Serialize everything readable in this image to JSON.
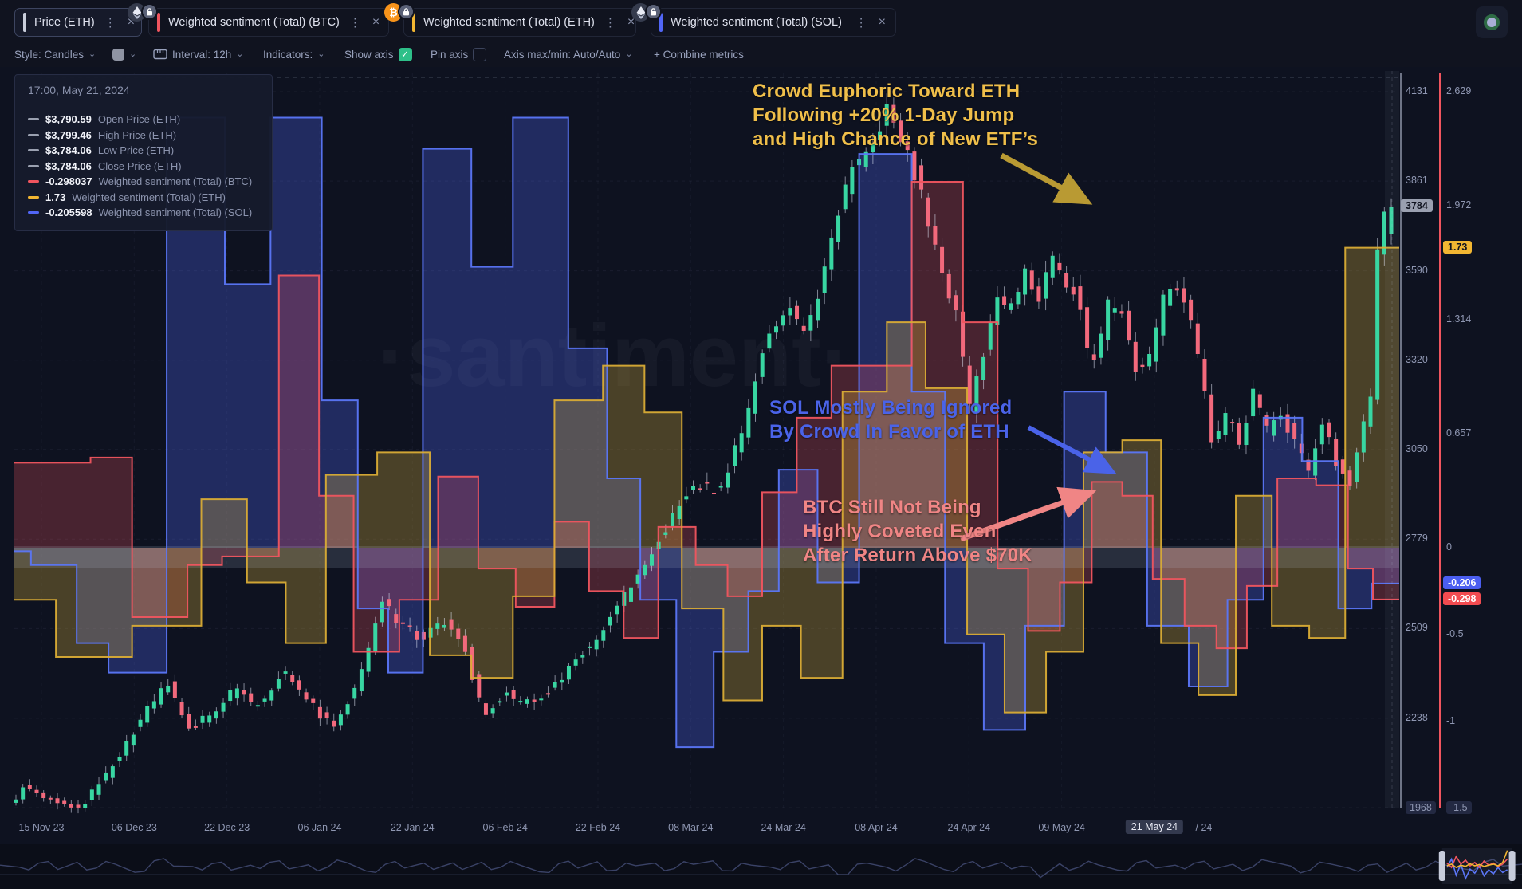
{
  "app": {
    "watermark": "·santiment·"
  },
  "tabs": {
    "items": [
      {
        "label": "Price (ETH)",
        "accent": "#c9cedb",
        "active": true
      },
      {
        "label": "Weighted sentiment (Total) (BTC)",
        "accent": "#f0555f",
        "active": false
      },
      {
        "label": "Weighted sentiment (Total) (ETH)",
        "accent": "#f2b632",
        "active": false
      },
      {
        "label": "Weighted sentiment (Total) (SOL)",
        "accent": "#5166f6",
        "active": false
      }
    ],
    "kebab_glyph": "⋮",
    "close_glyph": "×"
  },
  "toolbar": {
    "style_label": "Style: Candles",
    "interval_label": "Interval: 12h",
    "indicators_label": "Indicators:",
    "show_axis_label": "Show axis",
    "pin_axis_label": "Pin axis",
    "axis_maxmin_label": "Axis max/min: Auto/Auto",
    "combine_label": "+ Combine metrics",
    "show_axis_checked": true,
    "pin_axis_checked": false,
    "check_glyph": "✓",
    "checkbox_color": "#2ec089"
  },
  "tooltip": {
    "timestamp": "17:00, May 21, 2024",
    "rows": [
      {
        "value": "$3,790.59",
        "label": "Open Price (ETH)",
        "color": "#9aa0b0"
      },
      {
        "value": "$3,799.46",
        "label": "High Price (ETH)",
        "color": "#9aa0b0"
      },
      {
        "value": "$3,784.06",
        "label": "Low Price (ETH)",
        "color": "#9aa0b0"
      },
      {
        "value": "$3,784.06",
        "label": "Close Price (ETH)",
        "color": "#9aa0b0"
      },
      {
        "value": "-0.298037",
        "label": "Weighted sentiment (Total) (BTC)",
        "color": "#f0555f"
      },
      {
        "value": "1.73",
        "label": "Weighted sentiment (Total) (ETH)",
        "color": "#f2b632"
      },
      {
        "value": "-0.205598",
        "label": "Weighted sentiment (Total) (SOL)",
        "color": "#5166f6"
      }
    ]
  },
  "annotations": {
    "eth": {
      "color": "#f0bf4a",
      "arrow_color": "#b99a33",
      "lines": [
        "Crowd Euphoric Toward ETH",
        "Following +20% 1-Day Jump",
        "and High Chance of New ETF’s"
      ]
    },
    "sol": {
      "color": "#4a63e8",
      "arrow_color": "#4a63e8",
      "lines": [
        "SOL Mostly Being Ignored",
        "By Crowd In Favor of ETH"
      ]
    },
    "btc": {
      "color": "#f08585",
      "arrow_color": "#f08585",
      "lines": [
        "BTC Still Not Being",
        "Highly Coveted Even",
        "After Return Above $70K"
      ]
    }
  },
  "axes": {
    "price_ticks": [
      4131,
      3861,
      3590,
      3320,
      3050,
      2779,
      2509,
      2238,
      1968
    ],
    "sentiment_ticks": [
      "2.629",
      "1.972",
      "1.314",
      "0.657",
      "0",
      "-0.5",
      "-1",
      "-1.5"
    ],
    "price_badge": {
      "text": "3784",
      "bg": "#9aa0b0",
      "fg": "#10131f"
    },
    "sentiment_badges": [
      {
        "text": "1.73",
        "bg": "#f2b632",
        "fg": "#10131f",
        "value": 1.73
      },
      {
        "text": "-0.206",
        "bg": "#4b5ef0",
        "fg": "#ffffff",
        "value": -0.206
      },
      {
        "text": "-0.298",
        "bg": "#f24b50",
        "fg": "#ffffff",
        "value": -0.298
      }
    ],
    "date_ticks": [
      "15 Nov 23",
      "06 Dec 23",
      "22 Dec 23",
      "06 Jan 24",
      "22 Jan 24",
      "06 Feb 24",
      "22 Feb 24",
      "08 Mar 24",
      "24 Mar 24",
      "08 Apr 24",
      "24 Apr 24",
      "09 May 24"
    ],
    "date_badge": "21 May 24",
    "date_suffix": "/ 24"
  },
  "chart_data": {
    "type": "candlestick",
    "interval": "12h",
    "x_range": [
      "15 Nov 23",
      "21 May 24"
    ],
    "price_axis_range": [
      1968,
      4131
    ],
    "sentiment_axis_range": [
      -1.5,
      2.629
    ],
    "grid": "dashed",
    "candle_colors": {
      "up": "#38d6a2",
      "down": "#f2697c",
      "wick": "rgba(225,232,248,0.55)"
    },
    "last_candle": {
      "open": 3790.59,
      "high": 3799.46,
      "low": 3784.06,
      "close": 3784.06
    },
    "price_path": [
      [
        0,
        1975
      ],
      [
        0.01,
        2030
      ],
      [
        0.03,
        1985
      ],
      [
        0.05,
        1960
      ],
      [
        0.07,
        2065
      ],
      [
        0.095,
        2230
      ],
      [
        0.115,
        2345
      ],
      [
        0.13,
        2210
      ],
      [
        0.15,
        2260
      ],
      [
        0.165,
        2330
      ],
      [
        0.18,
        2270
      ],
      [
        0.2,
        2385
      ],
      [
        0.215,
        2300
      ],
      [
        0.235,
        2210
      ],
      [
        0.255,
        2360
      ],
      [
        0.27,
        2590
      ],
      [
        0.285,
        2525
      ],
      [
        0.3,
        2475
      ],
      [
        0.315,
        2535
      ],
      [
        0.33,
        2465
      ],
      [
        0.345,
        2245
      ],
      [
        0.36,
        2315
      ],
      [
        0.375,
        2285
      ],
      [
        0.395,
        2325
      ],
      [
        0.415,
        2425
      ],
      [
        0.435,
        2525
      ],
      [
        0.455,
        2655
      ],
      [
        0.475,
        2795
      ],
      [
        0.495,
        2945
      ],
      [
        0.515,
        2925
      ],
      [
        0.535,
        3115
      ],
      [
        0.55,
        3395
      ],
      [
        0.565,
        3485
      ],
      [
        0.58,
        3395
      ],
      [
        0.595,
        3635
      ],
      [
        0.61,
        3875
      ],
      [
        0.625,
        3965
      ],
      [
        0.638,
        4075
      ],
      [
        0.648,
        3985
      ],
      [
        0.658,
        3890
      ],
      [
        0.668,
        3745
      ],
      [
        0.678,
        3565
      ],
      [
        0.688,
        3490
      ],
      [
        0.698,
        3170
      ],
      [
        0.708,
        3330
      ],
      [
        0.718,
        3515
      ],
      [
        0.728,
        3465
      ],
      [
        0.738,
        3595
      ],
      [
        0.748,
        3505
      ],
      [
        0.758,
        3625
      ],
      [
        0.768,
        3565
      ],
      [
        0.778,
        3515
      ],
      [
        0.786,
        3285
      ],
      [
        0.793,
        3365
      ],
      [
        0.8,
        3505
      ],
      [
        0.81,
        3455
      ],
      [
        0.82,
        3285
      ],
      [
        0.83,
        3335
      ],
      [
        0.84,
        3515
      ],
      [
        0.85,
        3545
      ],
      [
        0.86,
        3425
      ],
      [
        0.868,
        3255
      ],
      [
        0.875,
        3055
      ],
      [
        0.885,
        3155
      ],
      [
        0.895,
        3065
      ],
      [
        0.905,
        3225
      ],
      [
        0.915,
        3105
      ],
      [
        0.925,
        3165
      ],
      [
        0.935,
        3065
      ],
      [
        0.945,
        2975
      ],
      [
        0.955,
        3135
      ],
      [
        0.965,
        3015
      ],
      [
        0.975,
        2935
      ],
      [
        0.983,
        3085
      ],
      [
        0.99,
        3205
      ],
      [
        0.995,
        3655
      ],
      [
        1,
        3784
      ]
    ],
    "series": [
      {
        "name": "Weighted sentiment (Total) (BTC)",
        "type": "step",
        "color": "#f0555f",
        "fill": "rgba(240,85,95,0.26)",
        "points": [
          [
            0,
            0.49
          ],
          [
            0.055,
            0.52
          ],
          [
            0.085,
            -0.4
          ],
          [
            0.125,
            -0.1
          ],
          [
            0.15,
            -0.05
          ],
          [
            0.191,
            1.57
          ],
          [
            0.22,
            0.3
          ],
          [
            0.245,
            -0.6
          ],
          [
            0.278,
            -0.3
          ],
          [
            0.306,
            0.41
          ],
          [
            0.335,
            -0.12
          ],
          [
            0.362,
            -0.34
          ],
          [
            0.39,
            0.15
          ],
          [
            0.415,
            -0.25
          ],
          [
            0.44,
            -0.52
          ],
          [
            0.465,
            0.12
          ],
          [
            0.492,
            -0.1
          ],
          [
            0.515,
            -0.28
          ],
          [
            0.54,
            0.32
          ],
          [
            0.565,
            0.75
          ],
          [
            0.59,
            1.05
          ],
          [
            0.648,
            2.11
          ],
          [
            0.685,
            1.3
          ],
          [
            0.71,
            -0.12
          ],
          [
            0.732,
            -0.48
          ],
          [
            0.755,
            -0.2
          ],
          [
            0.778,
            0.38
          ],
          [
            0.8,
            0.3
          ],
          [
            0.822,
            -0.18
          ],
          [
            0.845,
            -0.45
          ],
          [
            0.868,
            -0.58
          ],
          [
            0.89,
            -0.22
          ],
          [
            0.912,
            0.4
          ],
          [
            0.94,
            0.36
          ],
          [
            0.963,
            -0.12
          ],
          [
            0.981,
            -0.298
          ]
        ]
      },
      {
        "name": "Weighted sentiment (Total) (ETH)",
        "type": "step",
        "color": "#d9ac35",
        "fill": "rgba(230,185,60,0.28)",
        "points": [
          [
            0,
            -0.3
          ],
          [
            0.03,
            -0.63
          ],
          [
            0.085,
            -0.45
          ],
          [
            0.135,
            0.28
          ],
          [
            0.168,
            -0.2
          ],
          [
            0.196,
            -0.55
          ],
          [
            0.225,
            0.42
          ],
          [
            0.262,
            0.55
          ],
          [
            0.3,
            -0.62
          ],
          [
            0.33,
            -0.75
          ],
          [
            0.36,
            -0.28
          ],
          [
            0.39,
            0.85
          ],
          [
            0.425,
            1.05
          ],
          [
            0.455,
            0.78
          ],
          [
            0.482,
            -0.35
          ],
          [
            0.512,
            -0.88
          ],
          [
            0.54,
            -0.45
          ],
          [
            0.568,
            -0.75
          ],
          [
            0.598,
            0.9
          ],
          [
            0.63,
            1.3
          ],
          [
            0.658,
            0.92
          ],
          [
            0.688,
            -0.5
          ],
          [
            0.715,
            -0.95
          ],
          [
            0.745,
            -0.6
          ],
          [
            0.772,
            0.55
          ],
          [
            0.8,
            0.62
          ],
          [
            0.828,
            -0.55
          ],
          [
            0.855,
            -0.85
          ],
          [
            0.882,
            0.3
          ],
          [
            0.908,
            -0.45
          ],
          [
            0.935,
            -0.52
          ],
          [
            0.961,
            1.73
          ]
        ]
      },
      {
        "name": "Weighted sentiment (Total) (SOL)",
        "type": "step",
        "color": "#5b76f7",
        "fill": "rgba(80,102,246,0.30)",
        "points": [
          [
            0,
            -0.02
          ],
          [
            0.012,
            -0.1
          ],
          [
            0.045,
            -0.55
          ],
          [
            0.068,
            -0.72
          ],
          [
            0.11,
            2.48
          ],
          [
            0.152,
            1.52
          ],
          [
            0.185,
            2.48
          ],
          [
            0.222,
            0.85
          ],
          [
            0.248,
            -0.35
          ],
          [
            0.27,
            -0.72
          ],
          [
            0.295,
            2.3
          ],
          [
            0.33,
            1.62
          ],
          [
            0.36,
            2.48
          ],
          [
            0.4,
            1.15
          ],
          [
            0.428,
            0.4
          ],
          [
            0.452,
            -0.3
          ],
          [
            0.478,
            -1.15
          ],
          [
            0.505,
            -0.6
          ],
          [
            0.53,
            -0.25
          ],
          [
            0.552,
            0.45
          ],
          [
            0.58,
            -0.2
          ],
          [
            0.61,
            2.27
          ],
          [
            0.648,
            0.9
          ],
          [
            0.672,
            -0.55
          ],
          [
            0.7,
            -1.05
          ],
          [
            0.73,
            -0.45
          ],
          [
            0.758,
            0.9
          ],
          [
            0.788,
            0.55
          ],
          [
            0.818,
            -0.45
          ],
          [
            0.848,
            -0.8
          ],
          [
            0.876,
            -0.3
          ],
          [
            0.902,
            0.75
          ],
          [
            0.93,
            0.5
          ],
          [
            0.956,
            -0.35
          ],
          [
            0.98,
            -0.206
          ]
        ]
      }
    ]
  },
  "minimap": {
    "wave": [
      0.45,
      0.52,
      0.38,
      0.6,
      0.35,
      0.55,
      0.42,
      0.7,
      0.3,
      0.48,
      0.5,
      0.4,
      0.62,
      0.45,
      0.35,
      0.58,
      0.44,
      0.52,
      0.36,
      0.65,
      0.42,
      0.55,
      0.38,
      0.48,
      0.6,
      0.35,
      0.52,
      0.45,
      0.68,
      0.4,
      0.55,
      0.33,
      0.62,
      0.47,
      0.38,
      0.57,
      0.42,
      0.3,
      0.65,
      0.45,
      0.52,
      0.36,
      0.58,
      0.44,
      0.78,
      0.38,
      0.52,
      0.45,
      0.32,
      0.6,
      0.42,
      0.55,
      0.35,
      0.48,
      0.88,
      0.4,
      0.52,
      0.44,
      0.62,
      0.36,
      0.55,
      0.45,
      0.38,
      0.58,
      0.42,
      0.52,
      0.33,
      0.48,
      0.62,
      0.4,
      0.55,
      0.45,
      0.7,
      0.38,
      0.52,
      0.44,
      0.58,
      0.35,
      0.48,
      0.42
    ],
    "wave_color": "#3a4266",
    "selection": {
      "from": 0.9475,
      "to": 0.9935,
      "handle_color": "#c7ccdb",
      "fill": "rgba(130,140,175,0.10)"
    },
    "sel_series": {
      "blue": {
        "color": "#5b76f7",
        "values": [
          0.55,
          0.3,
          0.78,
          0.45,
          0.88,
          0.6,
          0.72,
          0.5,
          0.8,
          0.62,
          0.74,
          0.55,
          0.7,
          0.62
        ]
      },
      "red": {
        "color": "#f0555f",
        "values": [
          0.42,
          0.55,
          0.22,
          0.45,
          0.33,
          0.5,
          0.4,
          0.55,
          0.36,
          0.48,
          0.42,
          0.52,
          0.45,
          0.3
        ]
      },
      "yellow": {
        "color": "#f2b632",
        "values": [
          0.5,
          0.45,
          0.55,
          0.48,
          0.52,
          0.44,
          0.5,
          0.46,
          0.52,
          0.48,
          0.45,
          0.5,
          0.4,
          0.04
        ]
      }
    }
  }
}
